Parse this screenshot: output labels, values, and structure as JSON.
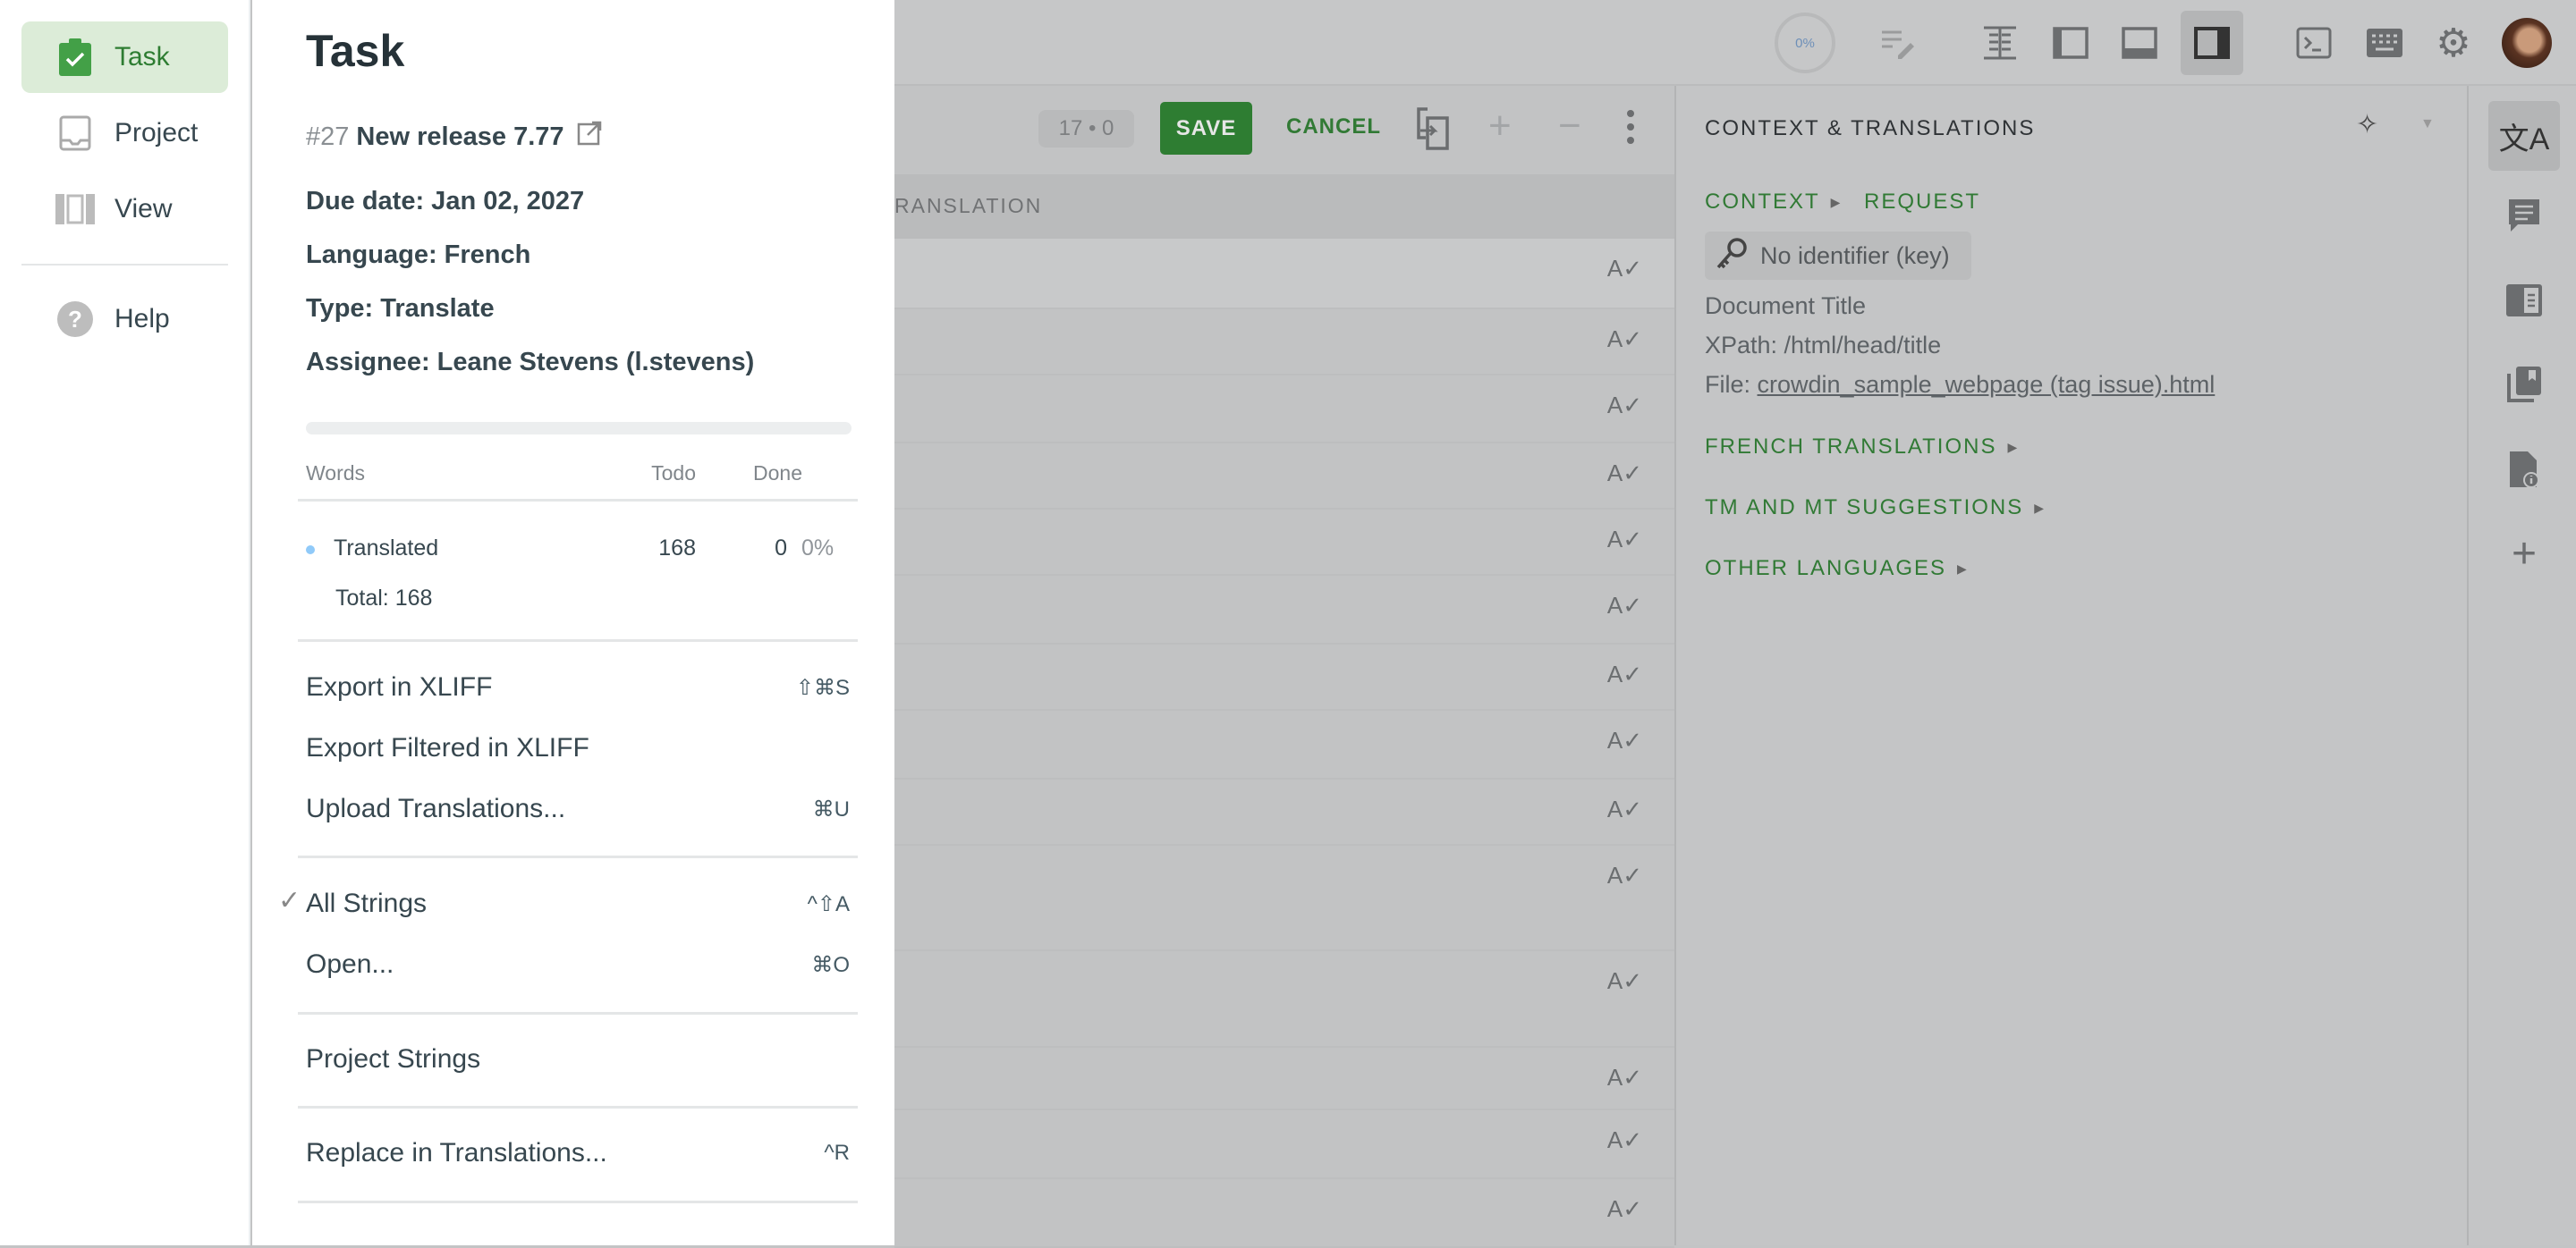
{
  "nav": {
    "items": [
      {
        "label": "Task",
        "icon": "clipboard-check-icon",
        "active": true
      },
      {
        "label": "Project",
        "icon": "inbox-icon"
      },
      {
        "label": "View",
        "icon": "columns-icon"
      },
      {
        "label": "Help",
        "icon": "help-circle-icon"
      }
    ]
  },
  "task": {
    "title": "Task",
    "number": "#27",
    "name": "New release 7.77",
    "due_date": "Due date: Jan 02, 2027",
    "language": "Language: French",
    "type": "Type: Translate",
    "assignee": "Assignee: Leane Stevens (l.stevens)",
    "progress_percent": 0,
    "table": {
      "headers": [
        "Words",
        "Todo",
        "Done"
      ],
      "rows": [
        {
          "label": "Translated",
          "todo": "168",
          "done": "0",
          "percent": "0%",
          "dot_color": "#90caf9"
        }
      ],
      "total": "Total: 168"
    }
  },
  "menu": {
    "groups": [
      [
        {
          "label": "Export in XLIFF",
          "shortcut": "⇧⌘S"
        },
        {
          "label": "Export Filtered in XLIFF",
          "shortcut": ""
        },
        {
          "label": "Upload Translations...",
          "shortcut": "⌘U"
        }
      ],
      [
        {
          "label": "All Strings",
          "shortcut": "^⇧A",
          "checked": true
        },
        {
          "label": "Open...",
          "shortcut": "⌘O"
        }
      ],
      [
        {
          "label": "Project Strings",
          "shortcut": ""
        }
      ],
      [
        {
          "label": "Replace in Translations...",
          "shortcut": "^R"
        }
      ]
    ]
  },
  "topbar": {
    "progress_label": "0%",
    "icons": [
      "edit-list-icon",
      "layout-table-icon",
      "layout-left-panel-icon",
      "layout-bottom-panel-icon",
      "layout-right-panel-icon",
      "terminal-icon",
      "keyboard-icon",
      "settings-icon",
      "avatar"
    ],
    "active_layout": "layout-right-panel-icon"
  },
  "editor": {
    "counter": "17 • 0",
    "save_label": "SAVE",
    "cancel_label": "CANCEL",
    "column_header": "RANSLATION"
  },
  "context": {
    "title": "CONTEXT & TRANSLATIONS",
    "context_label": "CONTEXT",
    "request_label": "REQUEST",
    "key_chip": "No identifier (key)",
    "doc_title": "Document Title",
    "xpath": "XPath: /html/head/title",
    "file_prefix": "File: ",
    "file_name": "crowdin_sample_webpage (tag issue).html",
    "sections": [
      "FRENCH TRANSLATIONS",
      "TM AND MT SUGGESTIONS",
      "OTHER LANGUAGES"
    ]
  },
  "colors": {
    "accent": "#2e7d32",
    "active_nav_bg": "#dcecd8",
    "overlay": "#c3c4c5"
  }
}
